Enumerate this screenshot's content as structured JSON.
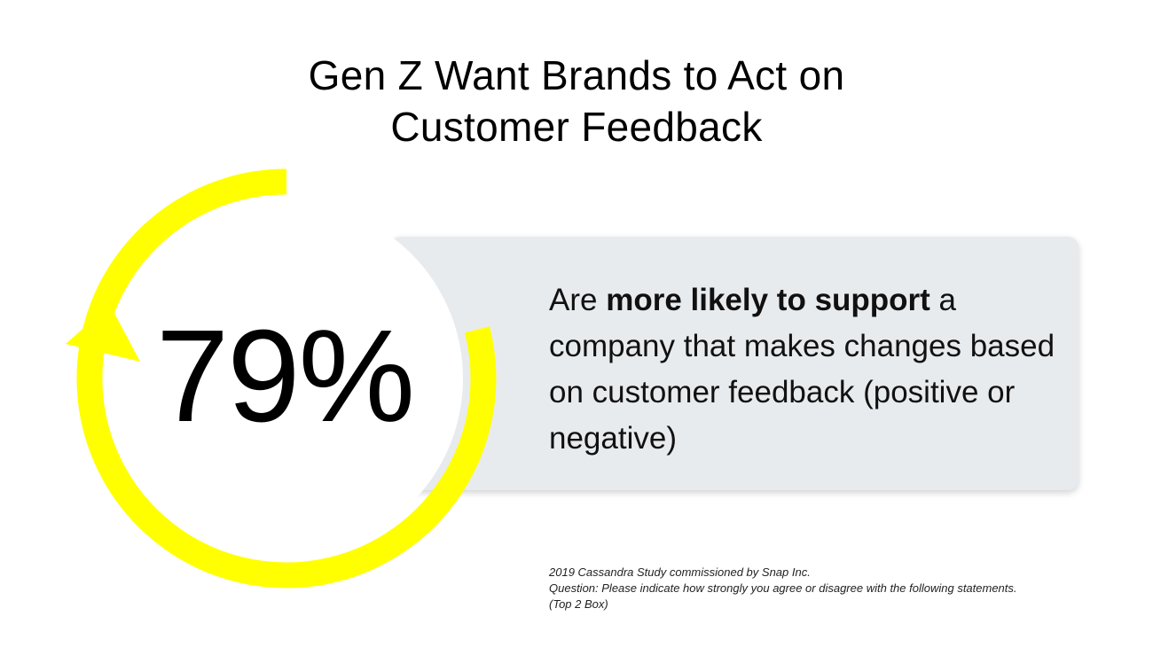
{
  "title": {
    "line1": "Gen Z Want Brands to Act on",
    "line2": "Customer Feedback"
  },
  "stat": {
    "value": "79%",
    "fraction": 0.79
  },
  "statement": {
    "prefix": "Are ",
    "emphasis": "more likely to support",
    "suffix": " a company that makes changes based on customer feedback (positive or negative)"
  },
  "footnote": {
    "line1": "2019 Cassandra Study commissioned by Snap Inc.",
    "line2": "Question: Please indicate how strongly you agree or disagree with the following statements.",
    "line3": "(Top 2 Box)"
  },
  "colors": {
    "arc": "#ffff00",
    "card": "#e8ebee",
    "text": "#000000"
  },
  "icons": {
    "progress_arc": "circular-arrow-icon"
  }
}
